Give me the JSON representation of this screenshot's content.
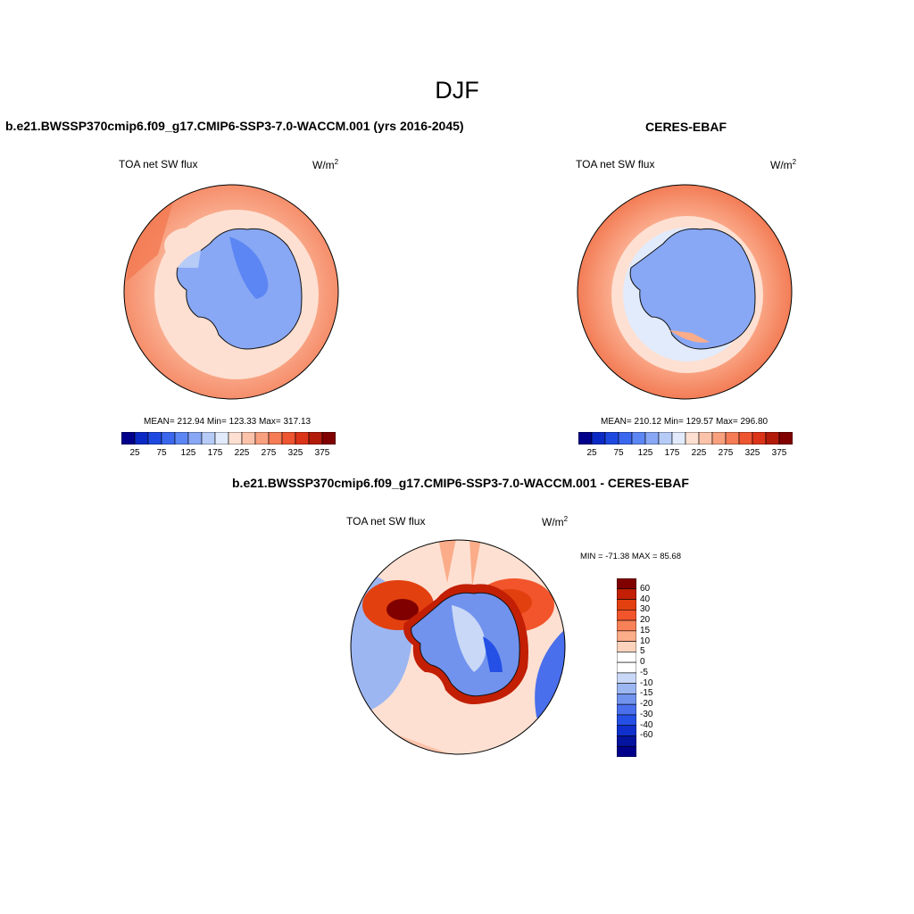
{
  "figure": {
    "title": "DJF"
  },
  "panels": [
    {
      "title": "b.e21.BWSSP370cmip6.f09_g17.CMIP6-SSP3-7.0-WACCM.001 (yrs 2016-2045)",
      "variable": "TOA net SW flux",
      "units_base": "W/m",
      "units_exp": "2",
      "stats": "MEAN= 212.94  Min= 123.33  Max= 317.13",
      "colorbar": {
        "colors": [
          "#00008b",
          "#0b2ac5",
          "#1e49e1",
          "#3a67ee",
          "#5c86f3",
          "#88a8f5",
          "#b6cbf6",
          "#e1ebfb",
          "#fde0d2",
          "#fcc3ab",
          "#f9a07f",
          "#f57c55",
          "#ee5531",
          "#dc3418",
          "#b31b0a",
          "#800000"
        ],
        "labels": [
          "25",
          "75",
          "125",
          "175",
          "225",
          "275",
          "325",
          "375"
        ]
      }
    },
    {
      "title": "CERES-EBAF",
      "variable": "TOA net SW flux",
      "units_base": "W/m",
      "units_exp": "2",
      "stats": "MEAN= 210.12  Min= 129.57  Max= 296.80",
      "colorbar": {
        "colors": [
          "#00008b",
          "#0b2ac5",
          "#1e49e1",
          "#3a67ee",
          "#5c86f3",
          "#88a8f5",
          "#b6cbf6",
          "#e1ebfb",
          "#fde0d2",
          "#fcc3ab",
          "#f9a07f",
          "#f57c55",
          "#ee5531",
          "#dc3418",
          "#b31b0a",
          "#800000"
        ],
        "labels": [
          "25",
          "75",
          "125",
          "175",
          "225",
          "275",
          "325",
          "375"
        ]
      }
    },
    {
      "title": "b.e21.BWSSP370cmip6.f09_g17.CMIP6-SSP3-7.0-WACCM.001 - CERES-EBAF",
      "variable": "TOA net SW flux",
      "units_base": "W/m",
      "units_exp": "2",
      "stats": "MIN = -71.38 MAX =  85.68",
      "colorbar": {
        "colors": [
          "#800000",
          "#c21f05",
          "#e2400f",
          "#f2552b",
          "#f98157",
          "#fbac89",
          "#fdd3bd",
          "#ffffff",
          "#ffffff",
          "#c9d8f7",
          "#9cb6f2",
          "#7193ee",
          "#4a6fec",
          "#2550e6",
          "#0f30cc",
          "#05149e",
          "#00008b"
        ],
        "labels": [
          "60",
          "40",
          "30",
          "20",
          "15",
          "10",
          "5",
          "0",
          "-5",
          "-10",
          "-15",
          "-20",
          "-30",
          "-40",
          "-60"
        ]
      }
    }
  ]
}
